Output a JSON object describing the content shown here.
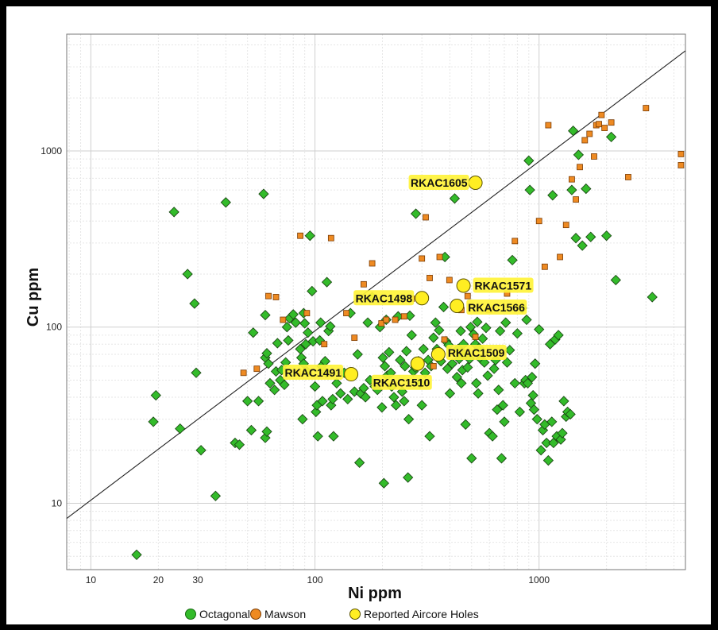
{
  "chart_data": {
    "type": "scatter",
    "title": "",
    "xlabel": "Ni ppm",
    "ylabel": "Cu ppm",
    "xscale": "log",
    "yscale": "log",
    "xlim": [
      7.8,
      4500
    ],
    "ylim": [
      4.2,
      4600
    ],
    "x_ticks": [
      10,
      20,
      30,
      100,
      1000
    ],
    "y_ticks": [
      10,
      100,
      1000
    ],
    "grid": true,
    "legend_position": "bottom",
    "reference_line": {
      "from": [
        7.8,
        8.2
      ],
      "to": [
        4500,
        3700
      ]
    },
    "series": [
      {
        "name": "Octagonal",
        "marker": "diamond",
        "color": "#33bb2a",
        "points": [
          [
            16,
            5.1
          ],
          [
            19,
            29
          ],
          [
            19.5,
            41
          ],
          [
            23.5,
            450
          ],
          [
            25,
            26.5
          ],
          [
            27,
            200
          ],
          [
            29,
            136
          ],
          [
            29.5,
            55
          ],
          [
            31,
            20
          ],
          [
            36,
            11
          ],
          [
            40,
            510
          ],
          [
            44,
            22
          ],
          [
            46,
            21.5
          ],
          [
            50,
            38
          ],
          [
            52,
            26
          ],
          [
            53,
            93
          ],
          [
            56,
            38
          ],
          [
            59,
            570
          ],
          [
            60,
            117
          ],
          [
            60,
            67
          ],
          [
            61,
            71
          ],
          [
            62,
            62
          ],
          [
            63,
            48
          ],
          [
            60,
            23.5
          ],
          [
            61,
            25.5
          ],
          [
            66,
            44
          ],
          [
            67,
            56
          ],
          [
            68,
            81
          ],
          [
            70,
            50
          ],
          [
            71,
            57
          ],
          [
            73,
            47
          ],
          [
            74,
            63
          ],
          [
            75,
            100
          ],
          [
            76,
            84
          ],
          [
            77,
            112
          ],
          [
            80,
            118
          ],
          [
            82,
            106
          ],
          [
            86,
            75
          ],
          [
            87,
            67
          ],
          [
            88,
            30
          ],
          [
            89,
            120
          ],
          [
            89,
            62
          ],
          [
            90,
            105
          ],
          [
            91,
            80
          ],
          [
            92,
            56
          ],
          [
            93,
            93
          ],
          [
            95,
            330
          ],
          [
            97,
            160
          ],
          [
            98,
            83
          ],
          [
            100,
            46
          ],
          [
            101,
            33
          ],
          [
            102,
            36
          ],
          [
            103,
            24
          ],
          [
            105,
            84
          ],
          [
            106,
            106
          ],
          [
            107,
            60
          ],
          [
            108,
            38
          ],
          [
            111,
            64
          ],
          [
            112,
            55
          ],
          [
            113,
            180
          ],
          [
            115,
            95
          ],
          [
            117,
            101
          ],
          [
            118,
            36
          ],
          [
            120,
            39
          ],
          [
            121,
            24
          ],
          [
            125,
            48
          ],
          [
            130,
            42
          ],
          [
            135,
            55
          ],
          [
            140,
            39
          ],
          [
            144,
            120
          ],
          [
            150,
            43
          ],
          [
            155,
            70
          ],
          [
            158,
            17
          ],
          [
            160,
            42
          ],
          [
            165,
            45
          ],
          [
            168,
            40
          ],
          [
            172,
            106
          ],
          [
            176,
            50
          ],
          [
            180,
            148
          ],
          [
            185,
            46
          ],
          [
            190,
            44
          ],
          [
            195,
            100
          ],
          [
            199,
            35
          ],
          [
            201,
            67
          ],
          [
            203,
            13
          ],
          [
            205,
            60
          ],
          [
            208,
            110
          ],
          [
            210,
            53
          ],
          [
            214,
            72
          ],
          [
            218,
            55
          ],
          [
            220,
            46
          ],
          [
            225,
            40
          ],
          [
            230,
            36
          ],
          [
            235,
            115
          ],
          [
            240,
            65
          ],
          [
            245,
            43
          ],
          [
            250,
            38
          ],
          [
            252,
            60
          ],
          [
            256,
            73
          ],
          [
            260,
            14
          ],
          [
            262,
            30
          ],
          [
            265,
            116
          ],
          [
            270,
            90
          ],
          [
            275,
            56
          ],
          [
            280,
            59
          ],
          [
            282,
            440
          ],
          [
            290,
            64
          ],
          [
            295,
            48
          ],
          [
            300,
            36
          ],
          [
            305,
            75
          ],
          [
            310,
            55
          ],
          [
            320,
            65
          ],
          [
            325,
            24
          ],
          [
            330,
            60
          ],
          [
            338,
            87
          ],
          [
            345,
            106
          ],
          [
            350,
            75
          ],
          [
            358,
            96
          ],
          [
            365,
            64
          ],
          [
            375,
            130
          ],
          [
            380,
            250
          ],
          [
            385,
            83
          ],
          [
            390,
            58
          ],
          [
            395,
            79
          ],
          [
            400,
            42
          ],
          [
            410,
            62
          ],
          [
            420,
            537
          ],
          [
            430,
            52
          ],
          [
            435,
            75
          ],
          [
            440,
            66
          ],
          [
            447,
            95
          ],
          [
            450,
            48
          ],
          [
            455,
            57
          ],
          [
            460,
            80
          ],
          [
            465,
            70
          ],
          [
            470,
            28
          ],
          [
            480,
            59
          ],
          [
            490,
            66
          ],
          [
            495,
            100
          ],
          [
            500,
            18
          ],
          [
            510,
            91
          ],
          [
            520,
            80
          ],
          [
            525,
            48
          ],
          [
            530,
            107
          ],
          [
            535,
            42
          ],
          [
            540,
            76
          ],
          [
            550,
            66
          ],
          [
            560,
            86
          ],
          [
            570,
            63
          ],
          [
            580,
            99
          ],
          [
            590,
            53
          ],
          [
            600,
            25
          ],
          [
            620,
            24
          ],
          [
            630,
            58
          ],
          [
            640,
            65
          ],
          [
            650,
            34
          ],
          [
            660,
            44
          ],
          [
            670,
            95
          ],
          [
            680,
            18
          ],
          [
            690,
            36
          ],
          [
            700,
            29
          ],
          [
            710,
            106
          ],
          [
            720,
            63
          ],
          [
            740,
            74
          ],
          [
            760,
            240
          ],
          [
            780,
            48
          ],
          [
            800,
            92
          ],
          [
            820,
            33
          ],
          [
            840,
            128
          ],
          [
            860,
            48
          ],
          [
            870,
            50
          ],
          [
            880,
            110
          ],
          [
            890,
            48
          ],
          [
            900,
            880
          ],
          [
            910,
            600
          ],
          [
            920,
            37
          ],
          [
            930,
            52
          ],
          [
            940,
            41
          ],
          [
            950,
            34
          ],
          [
            960,
            62
          ],
          [
            980,
            30
          ],
          [
            1000,
            97
          ],
          [
            1020,
            20
          ],
          [
            1040,
            26
          ],
          [
            1060,
            28
          ],
          [
            1080,
            22
          ],
          [
            1100,
            17.5
          ],
          [
            1120,
            80
          ],
          [
            1140,
            29
          ],
          [
            1150,
            560
          ],
          [
            1160,
            22
          ],
          [
            1180,
            85
          ],
          [
            1200,
            24
          ],
          [
            1220,
            90
          ],
          [
            1250,
            23
          ],
          [
            1270,
            25
          ],
          [
            1290,
            38
          ],
          [
            1320,
            31
          ],
          [
            1340,
            33
          ],
          [
            1380,
            32
          ],
          [
            1400,
            600
          ],
          [
            1420,
            1300
          ],
          [
            1460,
            320
          ],
          [
            1500,
            950
          ],
          [
            1560,
            290
          ],
          [
            1620,
            610
          ],
          [
            1700,
            325
          ],
          [
            2000,
            330
          ],
          [
            2100,
            1200
          ],
          [
            2200,
            185
          ],
          [
            3200,
            148
          ]
        ]
      },
      {
        "name": "Mawson",
        "marker": "square",
        "color": "#ee8a22",
        "points": [
          [
            48,
            55
          ],
          [
            55,
            58
          ],
          [
            62,
            150
          ],
          [
            67,
            148
          ],
          [
            72,
            110
          ],
          [
            84,
            55
          ],
          [
            86,
            330
          ],
          [
            92,
            120
          ],
          [
            110,
            80
          ],
          [
            118,
            320
          ],
          [
            138,
            120
          ],
          [
            150,
            87
          ],
          [
            165,
            175
          ],
          [
            180,
            230
          ],
          [
            198,
            105
          ],
          [
            208,
            110
          ],
          [
            228,
            110
          ],
          [
            250,
            115
          ],
          [
            270,
            145
          ],
          [
            300,
            245
          ],
          [
            312,
            420
          ],
          [
            325,
            190
          ],
          [
            338,
            60
          ],
          [
            360,
            250
          ],
          [
            378,
            85
          ],
          [
            398,
            185
          ],
          [
            450,
            125
          ],
          [
            480,
            150
          ],
          [
            520,
            88
          ],
          [
            600,
            125
          ],
          [
            720,
            155
          ],
          [
            780,
            308
          ],
          [
            1000,
            400
          ],
          [
            1060,
            220
          ],
          [
            1100,
            1400
          ],
          [
            1240,
            250
          ],
          [
            1320,
            380
          ],
          [
            1400,
            690
          ],
          [
            1460,
            530
          ],
          [
            1520,
            810
          ],
          [
            1600,
            1150
          ],
          [
            1680,
            1250
          ],
          [
            1760,
            930
          ],
          [
            1800,
            1400
          ],
          [
            1850,
            1420
          ],
          [
            1900,
            1600
          ],
          [
            1960,
            1350
          ],
          [
            2100,
            1450
          ],
          [
            2500,
            710
          ],
          [
            3000,
            1750
          ],
          [
            4300,
            960
          ],
          [
            4300,
            830
          ]
        ]
      },
      {
        "name": "Reported Aircore Holes",
        "marker": "circle",
        "color": "#ffee22",
        "points": [
          [
            520,
            660
          ],
          [
            460,
            172
          ],
          [
            300,
            146
          ],
          [
            430,
            132
          ],
          [
            355,
            70
          ],
          [
            287,
            62
          ],
          [
            145,
            54
          ]
        ]
      }
    ],
    "annotations": [
      {
        "text": "RKAC1605",
        "x": 520,
        "y": 660
      },
      {
        "text": "RKAC1571",
        "x": 460,
        "y": 172
      },
      {
        "text": "RKAC1498",
        "x": 300,
        "y": 146
      },
      {
        "text": "RKAC1566",
        "x": 430,
        "y": 132
      },
      {
        "text": "RKAC1509",
        "x": 355,
        "y": 70
      },
      {
        "text": "RKAC1510",
        "x": 287,
        "y": 62
      },
      {
        "text": "RKAC1491",
        "x": 145,
        "y": 54
      }
    ],
    "legend": [
      "Octagonal",
      "Mawson",
      "Reported Aircore Holes"
    ]
  }
}
